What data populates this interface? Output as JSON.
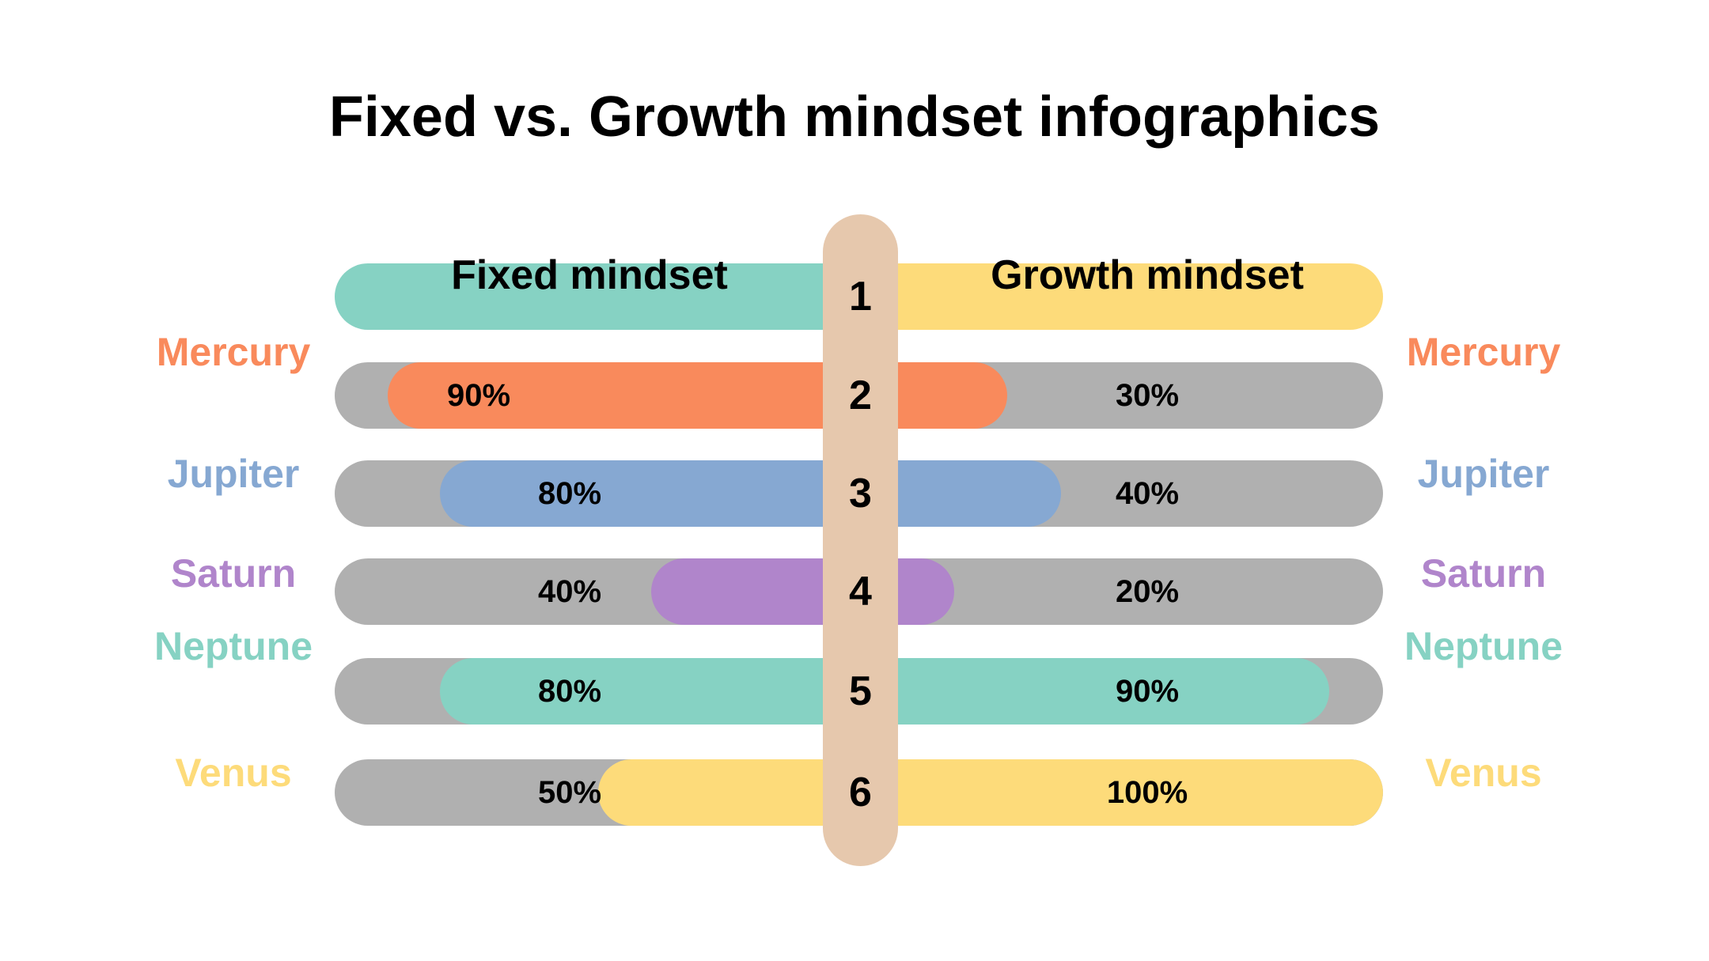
{
  "title": "Fixed vs. Growth mindset infographics",
  "header": {
    "number": "1",
    "fixed_label": "Fixed mindset",
    "growth_label": "Growth mindset",
    "fixed_color": "#86d2c3",
    "growth_color": "#fddb7a"
  },
  "track_color": "#b0b0b0",
  "spine_color": "#e6c8ad",
  "chart_data": {
    "type": "bar",
    "categories": [
      "Mercury",
      "Jupiter",
      "Saturn",
      "Neptune",
      "Venus"
    ],
    "row_numbers": [
      "2",
      "3",
      "4",
      "5",
      "6"
    ],
    "colors": [
      "#f98a5c",
      "#86a8d2",
      "#b085cb",
      "#86d2c3",
      "#fddb7a"
    ],
    "series": [
      {
        "name": "Fixed mindset",
        "values": [
          90,
          80,
          40,
          80,
          50
        ],
        "labels": [
          "90%",
          "80%",
          "40%",
          "80%",
          "50%"
        ]
      },
      {
        "name": "Growth mindset",
        "values": [
          30,
          40,
          20,
          90,
          100
        ],
        "labels": [
          "30%",
          "40%",
          "20%",
          "90%",
          "100%"
        ]
      }
    ],
    "ylim": [
      0,
      100
    ]
  }
}
